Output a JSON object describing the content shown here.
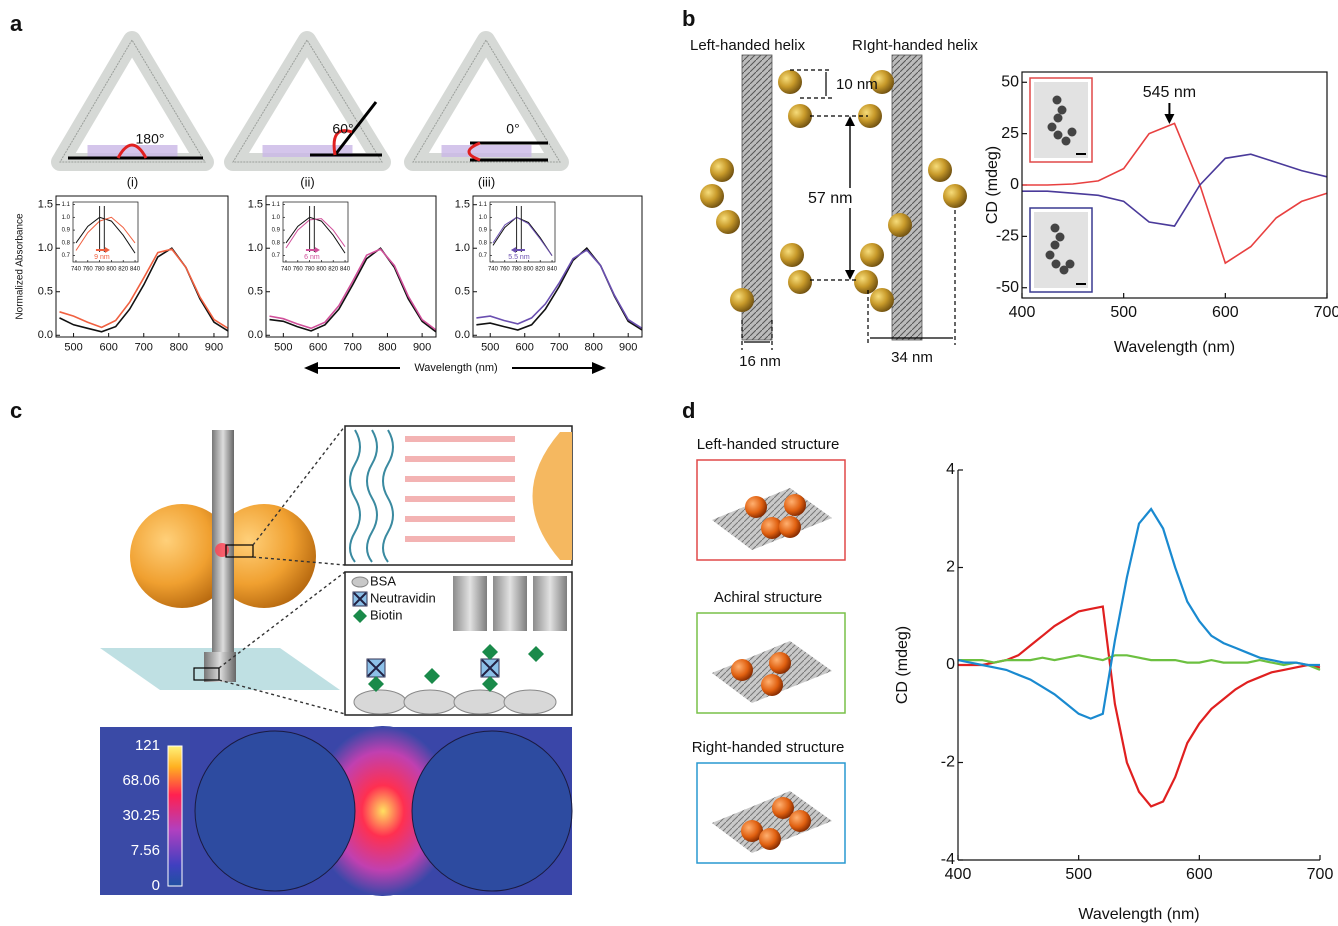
{
  "panel_labels": [
    "a",
    "b",
    "c",
    "d"
  ],
  "panel_a": {
    "diagrams": [
      {
        "angle": "180°",
        "label": "(i)"
      },
      {
        "angle": "60°",
        "label": "(ii)"
      },
      {
        "angle": "0°",
        "label": "(iii)"
      }
    ],
    "x_label": "Wavelength (nm)"
  },
  "panel_b": {
    "left_title": "Left-handed helix",
    "right_title": "RIght-handed helix",
    "dimensions": [
      "10 nm",
      "57 nm",
      "16 nm",
      "34 nm"
    ]
  },
  "panel_c": {
    "legend": [
      "BSA",
      "Neutravidin",
      "Biotin"
    ],
    "colorbar_ticks": [
      121,
      68.06,
      30.25,
      7.56,
      0
    ]
  },
  "panel_d": {
    "structures": [
      "Left-handed structure",
      "Achiral structure",
      "Right-handed structure"
    ]
  },
  "chart_data": [
    {
      "type": "line",
      "y_label": "Normalized Absorbance",
      "x": [
        460,
        500,
        540,
        580,
        620,
        660,
        700,
        740,
        780,
        820,
        860,
        900,
        940
      ],
      "xlim": [
        450,
        940
      ],
      "ylim": [
        -0.02,
        1.6
      ],
      "xticks": [
        500,
        600,
        700,
        800,
        900
      ],
      "yticks": [
        {
          "value": 0,
          "label": "0.0"
        },
        0.5,
        {
          "value": 1,
          "label": "1.0"
        },
        1.5
      ],
      "series": [
        {
          "color": "#111111",
          "values": [
            0.2,
            0.12,
            0.08,
            0.04,
            0.1,
            0.3,
            0.58,
            0.9,
            1.0,
            0.78,
            0.42,
            0.15,
            0.05
          ]
        },
        {
          "color": "#f06040",
          "values": [
            0.27,
            0.22,
            0.15,
            0.09,
            0.17,
            0.38,
            0.66,
            0.95,
            0.99,
            0.78,
            0.44,
            0.18,
            0.08
          ]
        }
      ]
    },
    {
      "type": "line",
      "annotation": "9 nm",
      "x": [
        740,
        760,
        780,
        800,
        820,
        840
      ],
      "xlim": [
        735,
        845
      ],
      "ylim": [
        0.65,
        1.12
      ],
      "xticks": [
        740,
        760,
        780,
        800,
        820,
        840
      ],
      "yticks": [
        0.7,
        0.8,
        0.9,
        {
          "value": 1,
          "label": "1.0"
        },
        1.1
      ],
      "series": [
        {
          "color": "#111111",
          "values": [
            0.8,
            0.93,
            1.0,
            0.97,
            0.86,
            0.72
          ]
        },
        {
          "color": "#f06040",
          "values": [
            0.74,
            0.88,
            0.97,
            1.0,
            0.92,
            0.8
          ]
        }
      ]
    },
    {
      "type": "line",
      "x": [
        460,
        500,
        540,
        580,
        620,
        660,
        700,
        740,
        780,
        820,
        860,
        900,
        940
      ],
      "xlim": [
        450,
        940
      ],
      "ylim": [
        -0.02,
        1.6
      ],
      "xticks": [
        500,
        600,
        700,
        800,
        900
      ],
      "yticks": [
        {
          "value": 0,
          "label": "0.0"
        },
        0.5,
        {
          "value": 1,
          "label": "1.0"
        },
        1.5
      ],
      "series": [
        {
          "color": "#111111",
          "values": [
            0.18,
            0.16,
            0.1,
            0.05,
            0.12,
            0.3,
            0.58,
            0.88,
            1.0,
            0.78,
            0.42,
            0.16,
            0.04
          ]
        },
        {
          "color": "#d0509a",
          "values": [
            0.22,
            0.19,
            0.13,
            0.08,
            0.15,
            0.34,
            0.62,
            0.92,
            0.99,
            0.8,
            0.45,
            0.18,
            0.06
          ]
        }
      ]
    },
    {
      "type": "line",
      "annotation": "6 nm",
      "x": [
        740,
        760,
        780,
        800,
        820,
        840
      ],
      "xlim": [
        735,
        845
      ],
      "ylim": [
        0.65,
        1.12
      ],
      "xticks": [
        740,
        760,
        780,
        800,
        820,
        840
      ],
      "yticks": [
        0.7,
        0.8,
        0.9,
        {
          "value": 1,
          "label": "1.0"
        },
        1.1
      ],
      "series": [
        {
          "color": "#111111",
          "values": [
            0.8,
            0.93,
            1.0,
            0.97,
            0.86,
            0.72
          ]
        },
        {
          "color": "#d0509a",
          "values": [
            0.76,
            0.9,
            0.98,
            0.99,
            0.9,
            0.77
          ]
        }
      ]
    },
    {
      "type": "line",
      "x": [
        460,
        500,
        540,
        580,
        620,
        660,
        700,
        740,
        780,
        820,
        860,
        900,
        940
      ],
      "xlim": [
        450,
        940
      ],
      "ylim": [
        -0.02,
        1.6
      ],
      "xticks": [
        500,
        600,
        700,
        800,
        900
      ],
      "yticks": [
        {
          "value": 0,
          "label": "0.0"
        },
        0.5,
        {
          "value": 1,
          "label": "1.0"
        },
        1.5
      ],
      "series": [
        {
          "color": "#111111",
          "values": [
            0.12,
            0.14,
            0.1,
            0.06,
            0.12,
            0.3,
            0.56,
            0.86,
            1.0,
            0.8,
            0.45,
            0.16,
            0.06
          ]
        },
        {
          "color": "#6a4fb0",
          "values": [
            0.2,
            0.22,
            0.17,
            0.13,
            0.2,
            0.36,
            0.6,
            0.88,
            0.98,
            0.8,
            0.46,
            0.18,
            0.08
          ]
        }
      ]
    },
    {
      "type": "line",
      "annotation": "5.5 nm",
      "x": [
        740,
        760,
        780,
        800,
        820,
        840
      ],
      "xlim": [
        735,
        845
      ],
      "ylim": [
        0.65,
        1.12
      ],
      "xticks": [
        740,
        760,
        780,
        800,
        820,
        840
      ],
      "yticks": [
        0.7,
        0.8,
        0.9,
        {
          "value": 1,
          "label": "1.0"
        },
        1.1
      ],
      "series": [
        {
          "color": "#111111",
          "values": [
            0.78,
            0.92,
            1.0,
            0.96,
            0.84,
            0.7
          ]
        },
        {
          "color": "#6a4fb0",
          "values": [
            0.8,
            0.94,
            1.0,
            0.95,
            0.83,
            0.7
          ]
        }
      ]
    },
    {
      "type": "line",
      "y_label": "CD (mdeg)",
      "x_label": "Wavelength (nm)",
      "annotations": [
        {
          "text": "545 nm",
          "x": 545
        }
      ],
      "x": [
        400,
        425,
        450,
        475,
        500,
        525,
        550,
        575,
        600,
        625,
        650,
        675,
        700
      ],
      "xlim": [
        400,
        700
      ],
      "ylim": [
        -55,
        55
      ],
      "xticks": [
        400,
        500,
        600,
        700
      ],
      "yticks": [
        -50,
        -25,
        0,
        25,
        50
      ],
      "series": [
        {
          "color": "#e84040",
          "values": [
            0,
            0,
            0.5,
            2,
            8,
            25,
            30,
            0,
            -38,
            -30,
            -16,
            -8,
            -4
          ]
        },
        {
          "color": "#4a3a9a",
          "values": [
            -3,
            -3,
            -4,
            -5,
            -8,
            -18,
            -20,
            0,
            13,
            15,
            11,
            7,
            4
          ]
        }
      ]
    },
    {
      "type": "line",
      "y_label": "CD (mdeg)",
      "x_label": "Wavelength (nm)",
      "x": [
        400,
        410,
        420,
        430,
        440,
        450,
        460,
        470,
        480,
        490,
        500,
        510,
        520,
        530,
        540,
        550,
        560,
        570,
        580,
        590,
        600,
        610,
        620,
        630,
        640,
        650,
        660,
        670,
        680,
        690,
        700
      ],
      "xlim": [
        400,
        700
      ],
      "ylim": [
        -4,
        4
      ],
      "xticks": [
        400,
        500,
        600,
        700
      ],
      "yticks": [
        -4,
        -2,
        0,
        2,
        4
      ],
      "series": [
        {
          "color": "#e02020",
          "values": [
            0,
            0,
            0,
            0.05,
            0.1,
            0.2,
            0.4,
            0.6,
            0.8,
            0.95,
            1.1,
            1.15,
            1.2,
            -0.8,
            -2.0,
            -2.6,
            -2.9,
            -2.8,
            -2.3,
            -1.6,
            -1.2,
            -0.9,
            -0.7,
            -0.5,
            -0.35,
            -0.25,
            -0.15,
            -0.1,
            -0.05,
            0,
            -0.05
          ]
        },
        {
          "color": "#6cc040",
          "values": [
            0.1,
            0.1,
            0.1,
            0.05,
            0.1,
            0.1,
            0.1,
            0.15,
            0.1,
            0.15,
            0.2,
            0.15,
            0.1,
            0.2,
            0.2,
            0.15,
            0.1,
            0.1,
            0.1,
            0.05,
            0.05,
            0.1,
            0.05,
            0.05,
            0.05,
            0.1,
            0.05,
            0,
            0.05,
            0,
            -0.1
          ]
        },
        {
          "color": "#1a8ad0",
          "values": [
            0.1,
            0.05,
            0,
            -0.05,
            -0.1,
            -0.2,
            -0.3,
            -0.45,
            -0.6,
            -0.8,
            -1.0,
            -1.1,
            -1.0,
            0.5,
            1.8,
            2.9,
            3.2,
            2.8,
            2.0,
            1.3,
            0.9,
            0.6,
            0.45,
            0.35,
            0.25,
            0.15,
            0.1,
            0.05,
            0.05,
            0,
            0
          ]
        }
      ]
    }
  ]
}
